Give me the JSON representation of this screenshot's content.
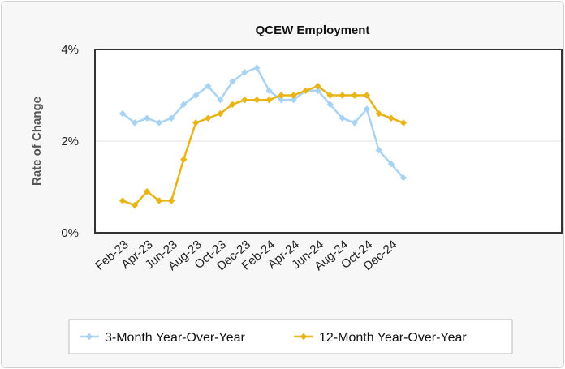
{
  "chart_data": {
    "type": "line",
    "title": "QCEW Employment",
    "xlabel": "",
    "ylabel": "Rate of Change",
    "ylim": [
      0,
      4
    ],
    "yticks": [
      {
        "value": 0,
        "label": "0%"
      },
      {
        "value": 2,
        "label": "2%"
      },
      {
        "value": 4,
        "label": "4%"
      }
    ],
    "grid": "horizontal line at 2%",
    "legend_position": "bottom",
    "categories": [
      "Feb-23",
      "Mar-23",
      "Apr-23",
      "May-23",
      "Jun-23",
      "Jul-23",
      "Aug-23",
      "Sep-23",
      "Oct-23",
      "Nov-23",
      "Dec-23",
      "Jan-24",
      "Feb-24",
      "Mar-24",
      "Apr-24",
      "May-24",
      "Jun-24",
      "Jul-24",
      "Aug-24",
      "Sep-24",
      "Oct-24",
      "Nov-24",
      "Dec-24",
      "Jan-25"
    ],
    "tick_labels": [
      "Feb-23",
      "Apr-23",
      "Jun-23",
      "Aug-23",
      "Oct-23",
      "Dec-23",
      "Feb-24",
      "Apr-24",
      "Jun-24",
      "Aug-24",
      "Oct-24",
      "Dec-24"
    ],
    "series": [
      {
        "name": "3-Month Year-Over-Year",
        "color": "#a9d3f2",
        "values": [
          2.6,
          2.4,
          2.5,
          2.4,
          2.5,
          2.8,
          3.0,
          3.2,
          2.9,
          3.3,
          3.5,
          3.6,
          3.1,
          2.9,
          2.9,
          3.1,
          3.1,
          2.8,
          2.5,
          2.4,
          2.7,
          1.8,
          1.5,
          1.2
        ]
      },
      {
        "name": "12-Month Year-Over-Year",
        "color": "#e8b416",
        "values": [
          0.7,
          0.6,
          0.9,
          0.7,
          0.7,
          1.6,
          2.4,
          2.5,
          2.6,
          2.8,
          2.9,
          2.9,
          2.9,
          3.0,
          3.0,
          3.1,
          3.2,
          3.0,
          3.0,
          3.0,
          3.0,
          2.6,
          2.5,
          2.4
        ]
      }
    ]
  }
}
